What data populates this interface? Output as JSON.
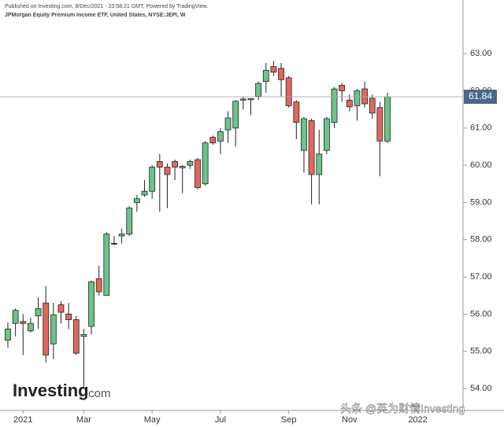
{
  "chart_data": {
    "type": "candlestick",
    "header": "Published on Investing.com, 8/Dec/2021 - 23:58:21 GMT, Powered by TradingView.",
    "title": "JPMorgan Equity Premium Income ETF, United States, NYSE:JEPI, W",
    "watermark_brand": "Investing",
    "watermark_domain": ".com",
    "credit": "头条 @英为财情Investing",
    "categories": [
      null,
      null,
      "2021",
      null,
      null,
      null,
      null,
      null,
      null,
      null,
      "Mar",
      null,
      null,
      null,
      null,
      null,
      null,
      null,
      null,
      "May",
      null,
      null,
      null,
      null,
      null,
      null,
      null,
      null,
      "Jul",
      null,
      null,
      null,
      null,
      null,
      null,
      null,
      null,
      "Sep",
      null,
      null,
      null,
      null,
      null,
      null,
      null,
      "Nov",
      null,
      null,
      null,
      null,
      null,
      null,
      null,
      null,
      "2022"
    ],
    "open": [
      55.3,
      55.75,
      55.8,
      55.55,
      55.95,
      56.3,
      55.2,
      56.25,
      56.0,
      55.85,
      55.4,
      55.67,
      56.95,
      56.5,
      57.9,
      58.1,
      58.15,
      59.0,
      59.2,
      59.3,
      60.1,
      59.95,
      60.1,
      59.93,
      60.0,
      60.15,
      59.5,
      60.75,
      60.65,
      60.95,
      61.0,
      61.75,
      61.76,
      61.85,
      62.25,
      62.65,
      62.6,
      62.35,
      61.7,
      60.4,
      61.2,
      59.75,
      60.4,
      61.15,
      62.15,
      61.75,
      61.6,
      62.05,
      61.8,
      61.55,
      60.65,
      null,
      null,
      null,
      null
    ],
    "high": [
      55.78,
      56.15,
      56.0,
      55.9,
      56.45,
      56.75,
      56.3,
      56.35,
      56.3,
      55.95,
      55.6,
      56.9,
      57.3,
      58.2,
      58.1,
      58.3,
      58.9,
      59.2,
      59.6,
      60.0,
      60.3,
      60.05,
      60.15,
      60.0,
      60.15,
      60.2,
      60.65,
      60.8,
      61.0,
      61.45,
      61.75,
      61.85,
      61.8,
      62.25,
      62.75,
      62.8,
      62.75,
      62.4,
      61.75,
      61.3,
      61.25,
      60.95,
      61.3,
      62.1,
      62.2,
      61.9,
      62.05,
      62.25,
      61.9,
      61.7,
      61.95,
      null,
      null,
      null,
      null
    ],
    "low": [
      55.1,
      55.4,
      54.9,
      55.5,
      55.6,
      54.7,
      54.8,
      55.75,
      55.6,
      54.9,
      54.0,
      55.45,
      56.5,
      56.5,
      57.85,
      57.9,
      58.1,
      58.75,
      59.15,
      59.1,
      58.75,
      58.85,
      59.6,
      59.25,
      59.9,
      59.35,
      59.45,
      60.55,
      60.3,
      60.6,
      60.5,
      61.5,
      61.35,
      61.75,
      61.95,
      62.4,
      61.85,
      61.55,
      60.7,
      59.8,
      58.95,
      58.95,
      60.3,
      61.0,
      61.7,
      61.45,
      61.2,
      61.55,
      61.25,
      59.7,
      60.6,
      null,
      null,
      null,
      null
    ],
    "close": [
      55.6,
      56.1,
      55.75,
      55.75,
      56.15,
      54.9,
      55.98,
      56.05,
      55.85,
      54.95,
      55.45,
      56.87,
      56.6,
      58.15,
      57.88,
      58.15,
      58.85,
      59.1,
      59.3,
      59.95,
      59.95,
      59.75,
      59.95,
      59.97,
      60.1,
      59.4,
      60.6,
      60.6,
      60.9,
      61.27,
      61.72,
      61.78,
      61.79,
      62.2,
      62.55,
      62.5,
      62.3,
      61.6,
      61.15,
      61.25,
      59.75,
      60.3,
      61.25,
      62.05,
      62.0,
      61.57,
      62.0,
      61.65,
      61.4,
      60.65,
      61.84,
      null,
      null,
      null,
      null
    ],
    "last_price": 61.84,
    "up_color": "#6cc38a",
    "down_color": "#e0685e",
    "price_label_color": "#4d6789",
    "ylim": [
      53.41,
      64.44
    ],
    "yticks": [
      {
        "value": 54,
        "label": "54.00"
      },
      {
        "value": 55,
        "label": "55.00"
      },
      {
        "value": 56,
        "label": "56.00"
      },
      {
        "value": 57,
        "label": "57.00"
      },
      {
        "value": 58,
        "label": "58.00"
      },
      {
        "value": 59,
        "label": "59.00"
      },
      {
        "value": 60,
        "label": "60.00"
      },
      {
        "value": 61,
        "label": "61.00"
      },
      {
        "value": 62,
        "label": "62.00"
      },
      {
        "value": 63,
        "label": "63.00"
      }
    ]
  }
}
